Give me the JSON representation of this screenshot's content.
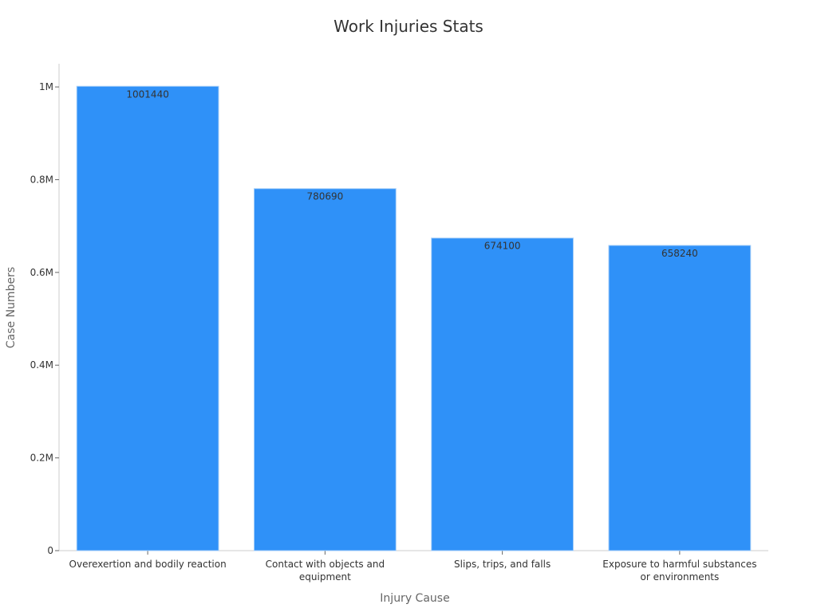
{
  "chart_data": {
    "type": "bar",
    "title": "Work Injuries Stats",
    "xlabel": "Injury Cause",
    "ylabel": "Case Numbers",
    "categories": [
      [
        "Overexertion and bodily reaction"
      ],
      [
        "Contact with objects and",
        "equipment"
      ],
      [
        "Slips, trips, and falls"
      ],
      [
        "Exposure to harmful substances",
        "or environments"
      ]
    ],
    "values": [
      1001440,
      780690,
      674100,
      658240
    ],
    "ylim": [
      0,
      1050000
    ],
    "yticks": [
      0,
      200000,
      400000,
      600000,
      800000,
      1000000
    ],
    "ytick_labels": [
      "0",
      "0.2M",
      "0.4M",
      "0.6M",
      "0.8M",
      "1M"
    ],
    "grid": false,
    "bar_color": "#2f91f8",
    "axis_color": "#cccccc"
  }
}
